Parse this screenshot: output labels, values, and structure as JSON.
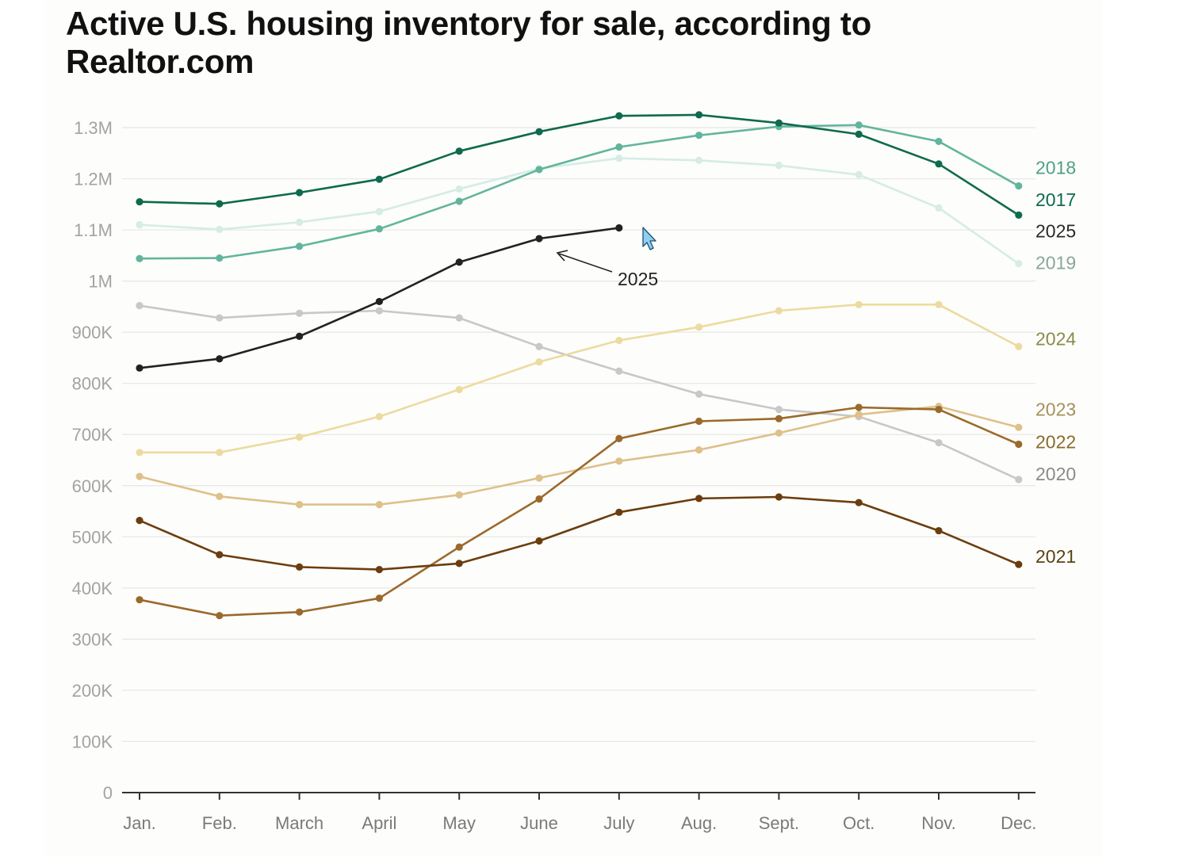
{
  "chart_data": {
    "type": "line",
    "title": "Active U.S. housing inventory for sale, according to Realtor.com",
    "xlabel": "",
    "ylabel": "",
    "categories": [
      "Jan.",
      "Feb.",
      "March",
      "April",
      "May",
      "June",
      "July",
      "Aug.",
      "Sept.",
      "Oct.",
      "Nov.",
      "Dec."
    ],
    "ylim": [
      0,
      1300000
    ],
    "yticks": [
      {
        "value": 0,
        "label": "0"
      },
      {
        "value": 100000,
        "label": "100K"
      },
      {
        "value": 200000,
        "label": "200K"
      },
      {
        "value": 300000,
        "label": "300K"
      },
      {
        "value": 400000,
        "label": "400K"
      },
      {
        "value": 500000,
        "label": "500K"
      },
      {
        "value": 600000,
        "label": "600K"
      },
      {
        "value": 700000,
        "label": "700K"
      },
      {
        "value": 800000,
        "label": "800K"
      },
      {
        "value": 900000,
        "label": "900K"
      },
      {
        "value": 1000000,
        "label": "1M"
      },
      {
        "value": 1100000,
        "label": "1.1M"
      },
      {
        "value": 1200000,
        "label": "1.2M"
      },
      {
        "value": 1300000,
        "label": "1.3M"
      }
    ],
    "grid": true,
    "series": [
      {
        "name": "2020",
        "color": "#c8c8c8",
        "values": [
          952000,
          928000,
          937000,
          942000,
          928000,
          872000,
          824000,
          779000,
          749000,
          735000,
          684000,
          612000
        ]
      },
      {
        "name": "2019",
        "color": "#d6ece6",
        "values": [
          1110000,
          1101000,
          1115000,
          1136000,
          1180000,
          1220000,
          1240000,
          1236000,
          1226000,
          1208000,
          1143000,
          1034000
        ]
      },
      {
        "name": "2018",
        "color": "#62b59d",
        "values": [
          1044000,
          1045000,
          1068000,
          1102000,
          1156000,
          1218000,
          1262000,
          1285000,
          1302000,
          1305000,
          1273000,
          1186000
        ]
      },
      {
        "name": "2017",
        "color": "#0f6a4e",
        "values": [
          1155000,
          1151000,
          1173000,
          1199000,
          1254000,
          1292000,
          1323000,
          1325000,
          1309000,
          1287000,
          1229000,
          1129000
        ]
      },
      {
        "name": "2024",
        "color": "#ecdba0",
        "values": [
          665000,
          665000,
          695000,
          735000,
          788000,
          842000,
          884000,
          910000,
          942000,
          954000,
          954000,
          872000
        ]
      },
      {
        "name": "2023",
        "color": "#dec08a",
        "values": [
          618000,
          579000,
          563000,
          563000,
          582000,
          615000,
          648000,
          670000,
          703000,
          739000,
          755000,
          714000
        ]
      },
      {
        "name": "2022",
        "color": "#9a6a2c",
        "values": [
          377000,
          346000,
          353000,
          380000,
          480000,
          574000,
          692000,
          726000,
          731000,
          753000,
          749000,
          681000
        ]
      },
      {
        "name": "2021",
        "color": "#6b3d0e",
        "values": [
          532000,
          465000,
          441000,
          436000,
          448000,
          492000,
          548000,
          575000,
          578000,
          567000,
          512000,
          446000
        ]
      },
      {
        "name": "2025",
        "color": "#222222",
        "values": [
          830000,
          848000,
          892000,
          960000,
          1037000,
          1083000,
          1104000,
          null,
          null,
          null,
          null,
          null
        ]
      }
    ],
    "right_labels": [
      {
        "name": "2018",
        "value": 1222000,
        "color": "#4fa087"
      },
      {
        "name": "2017",
        "value": 1159000,
        "color": "#0f6a4e"
      },
      {
        "name": "2025",
        "value": 1098000,
        "color": "#2a2a2a"
      },
      {
        "name": "2019",
        "value": 1036000,
        "color": "#8aa69c"
      },
      {
        "name": "2024",
        "value": 887000,
        "color": "#8b8b4a"
      },
      {
        "name": "2023",
        "value": 749000,
        "color": "#a6905a"
      },
      {
        "name": "2022",
        "value": 686000,
        "color": "#8a6a2c"
      },
      {
        "name": "2020",
        "value": 623000,
        "color": "#8a8a8a"
      },
      {
        "name": "2021",
        "value": 462000,
        "color": "#5a4312"
      }
    ],
    "annotation": {
      "text": "2025",
      "series": "2025",
      "points_to": "June"
    }
  }
}
